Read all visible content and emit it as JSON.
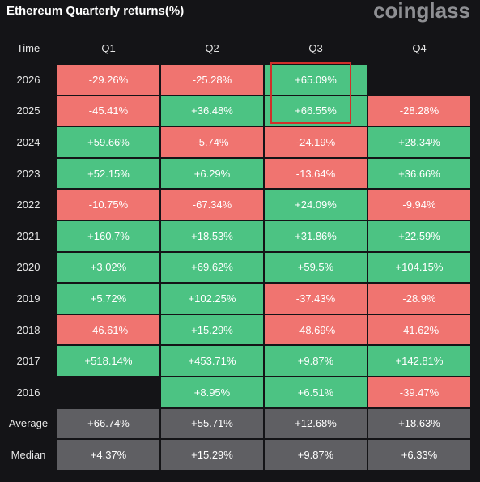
{
  "header": {
    "title": "Ethereum Quarterly returns(%)",
    "brand": "coinglass"
  },
  "table": {
    "columns": [
      "Time",
      "Q1",
      "Q2",
      "Q3",
      "Q4"
    ],
    "rows": [
      [
        "2026",
        "-29.26%",
        "-25.28%",
        "+65.09%",
        null
      ],
      [
        "2025",
        "-45.41%",
        "+36.48%",
        "+66.55%",
        "-28.28%"
      ],
      [
        "2024",
        "+59.66%",
        "-5.74%",
        "-24.19%",
        "+28.34%"
      ],
      [
        "2023",
        "+52.15%",
        "+6.29%",
        "-13.64%",
        "+36.66%"
      ],
      [
        "2022",
        "-10.75%",
        "-67.34%",
        "+24.09%",
        "-9.94%"
      ],
      [
        "2021",
        "+160.7%",
        "+18.53%",
        "+31.86%",
        "+22.59%"
      ],
      [
        "2020",
        "+3.02%",
        "+69.62%",
        "+59.5%",
        "+104.15%"
      ],
      [
        "2019",
        "+5.72%",
        "+102.25%",
        "-37.43%",
        "-28.9%"
      ],
      [
        "2018",
        "-46.61%",
        "+15.29%",
        "-48.69%",
        "-41.62%"
      ],
      [
        "2017",
        "+518.14%",
        "+453.71%",
        "+9.87%",
        "+142.81%"
      ],
      [
        "2016",
        null,
        "+8.95%",
        "+6.51%",
        "-39.47%"
      ]
    ],
    "summary": [
      [
        "Average",
        "+66.74%",
        "+55.71%",
        "+12.68%",
        "+18.63%"
      ],
      [
        "Median",
        "+4.37%",
        "+15.29%",
        "+9.87%",
        "+6.33%"
      ]
    ]
  }
}
